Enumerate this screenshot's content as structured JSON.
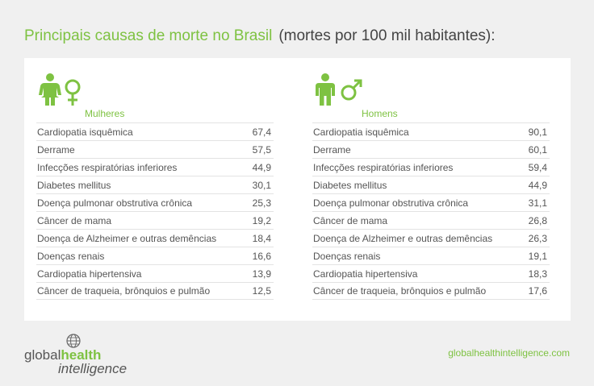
{
  "title": {
    "main": "Principais causas de morte no Brasil",
    "sub": "(mortes por 100 mil habitantes):"
  },
  "colors": {
    "accent": "#7ec242",
    "text": "#444444",
    "background": "#f0f0f0"
  },
  "icons": {
    "female": "female-symbol-icon",
    "male": "male-symbol-icon"
  },
  "chart_data": {
    "type": "table",
    "title": "Principais causas de morte no Brasil",
    "subtitle": "(mortes por 100 mil habitantes):",
    "groups": [
      {
        "label": "Mulheres",
        "rows": [
          {
            "cause": "Cardiopatia isquêmica",
            "value": "67,4"
          },
          {
            "cause": "Derrame",
            "value": "57,5"
          },
          {
            "cause": "Infecções respiratórias inferiores",
            "value": "44,9"
          },
          {
            "cause": "Diabetes mellitus",
            "value": "30,1"
          },
          {
            "cause": "Doença pulmonar obstrutiva crônica",
            "value": "25,3"
          },
          {
            "cause": "Câncer de mama",
            "value": "19,2"
          },
          {
            "cause": "Doença de Alzheimer e outras demências",
            "value": "18,4"
          },
          {
            "cause": "Doenças renais",
            "value": "16,6"
          },
          {
            "cause": "Cardiopatia hipertensiva",
            "value": "13,9"
          },
          {
            "cause": "Câncer de traqueia, brônquios e pulmão",
            "value": "12,5"
          }
        ]
      },
      {
        "label": "Homens",
        "rows": [
          {
            "cause": "Cardiopatia isquêmica",
            "value": "90,1"
          },
          {
            "cause": "Derrame",
            "value": "60,1"
          },
          {
            "cause": "Infecções respiratórias inferiores",
            "value": "59,4"
          },
          {
            "cause": "Diabetes mellitus",
            "value": "44,9"
          },
          {
            "cause": "Doença pulmonar obstrutiva crônica",
            "value": "31,1"
          },
          {
            "cause": "Câncer de mama",
            "value": "26,8"
          },
          {
            "cause": "Doença de Alzheimer e outras demências",
            "value": "26,3"
          },
          {
            "cause": "Doenças renais",
            "value": "19,1"
          },
          {
            "cause": "Cardiopatia hipertensiva",
            "value": "18,3"
          },
          {
            "cause": "Câncer de traqueia, brônquios e pulmão",
            "value": "17,6"
          }
        ]
      }
    ]
  },
  "footer": {
    "logo_text_1": "global",
    "logo_text_2": "health",
    "logo_text_3": "intelligence",
    "url": "globalhealthintelligence.com"
  }
}
